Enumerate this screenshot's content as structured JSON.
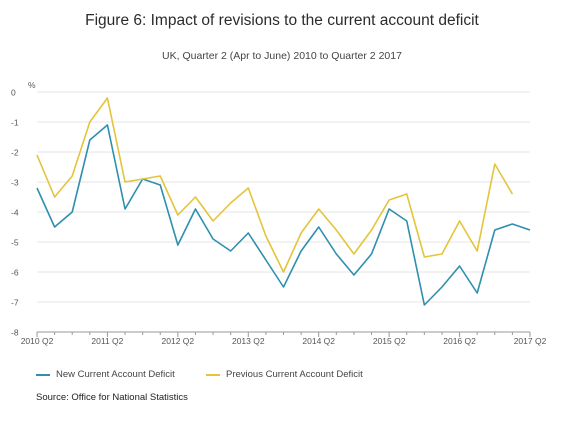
{
  "title": "Figure 6: Impact of revisions to the current account deficit",
  "subtitle": "UK, Quarter 2 (Apr to June) 2010 to Quarter 2 2017",
  "source": "Source: Office for National Statistics",
  "colors": {
    "new": "#2e8fae",
    "previous": "#e3c43b",
    "grid": "#e6e6e6",
    "axis": "#999999"
  },
  "chart_data": {
    "type": "line",
    "ylabel": "%",
    "ylim": [
      -8,
      0
    ],
    "yticks": [
      0,
      -1,
      -2,
      -3,
      -4,
      -5,
      -6,
      -7,
      -8
    ],
    "x": [
      "2010 Q2",
      "2010 Q3",
      "2010 Q4",
      "2011 Q1",
      "2011 Q2",
      "2011 Q3",
      "2011 Q4",
      "2012 Q1",
      "2012 Q2",
      "2012 Q3",
      "2012 Q4",
      "2013 Q1",
      "2013 Q2",
      "2013 Q3",
      "2013 Q4",
      "2014 Q1",
      "2014 Q2",
      "2014 Q3",
      "2014 Q4",
      "2015 Q1",
      "2015 Q2",
      "2015 Q3",
      "2015 Q4",
      "2016 Q1",
      "2016 Q2",
      "2016 Q3",
      "2016 Q4",
      "2017 Q1",
      "2017 Q2"
    ],
    "xtick_labels": [
      "2010 Q2",
      "2011 Q2",
      "2012 Q2",
      "2013 Q2",
      "2014 Q2",
      "2015 Q2",
      "2016 Q2",
      "2017 Q2"
    ],
    "grid": "horizontal",
    "legend": "bottom",
    "series": [
      {
        "name": "New Current Account Deficit",
        "values": [
          -3.2,
          -4.5,
          -4.0,
          -1.6,
          -1.1,
          -3.9,
          -2.9,
          -3.1,
          -5.1,
          -3.9,
          -4.9,
          -5.3,
          -4.7,
          -5.6,
          -6.5,
          -5.3,
          -4.5,
          -5.4,
          -6.1,
          -5.4,
          -3.9,
          -4.3,
          -7.1,
          -6.5,
          -5.8,
          -6.7,
          -4.6,
          -4.4,
          -4.6
        ]
      },
      {
        "name": "Previous Current Account Deficit",
        "values": [
          -2.1,
          -3.5,
          -2.8,
          -1.0,
          -0.2,
          -3.0,
          -2.9,
          -2.8,
          -4.1,
          -3.5,
          -4.3,
          -3.7,
          -3.2,
          -4.8,
          -6.0,
          -4.7,
          -3.9,
          -4.6,
          -5.4,
          -4.6,
          -3.6,
          -3.4,
          -5.5,
          -5.4,
          -4.3,
          -5.3,
          -2.4,
          -3.4,
          null
        ]
      }
    ]
  }
}
